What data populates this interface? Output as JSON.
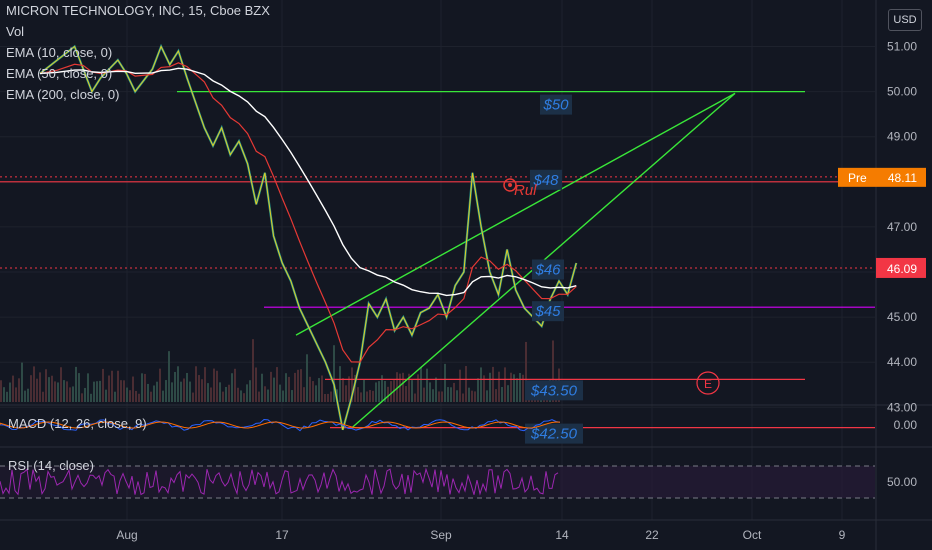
{
  "header": {
    "title": "MICRON TECHNOLOGY, INC, 15, Cboe BZX",
    "currency": "USD"
  },
  "indicators": {
    "vol": "Vol",
    "ema10": "EMA (10, close, 0)",
    "ema50": "EMA (50, close, 0)",
    "ema200": "EMA (200, close, 0)",
    "macd": "MACD (12, 26, close, 9)",
    "rsi": "RSI (14, close)"
  },
  "price_axis": {
    "ticks": [
      "51.00",
      "50.00",
      "49.00",
      "48.00",
      "47.00",
      "46.00",
      "45.00",
      "44.00",
      "43.00"
    ],
    "macd_tick": "0.00",
    "rsi_tick": "50.00",
    "pre_label": "Pre",
    "pre_value": "48.11",
    "last_value": "46.09"
  },
  "time_axis": {
    "labels": [
      "Aug",
      "17",
      "Sep",
      "14",
      "22",
      "Oct",
      "9"
    ]
  },
  "annotations": {
    "level_50": "$50",
    "level_48": "$48",
    "level_46": "$46",
    "level_45": "$45",
    "level_4350": "$43.50",
    "level_4250": "$42.50",
    "note": "Rul",
    "earnings": "E"
  },
  "colors": {
    "background": "#131722",
    "grid": "#1e222d",
    "ema10": "#f7d117",
    "ema50": "#e53935",
    "ema200": "#ffffff",
    "trend": "#39e639",
    "support": "#f23645",
    "magenta": "#d500f9",
    "label_text": "#2962ff",
    "pre_tag": "#f57c00",
    "last_tag": "#f23645",
    "rsi": "#9c27b0"
  },
  "chart_data": {
    "type": "line",
    "title": "MICRON TECHNOLOGY, INC, 15, Cboe BZX",
    "xlabel": "",
    "ylabel": "",
    "ylim": [
      42.3,
      51.2
    ],
    "x_labels": [
      "Aug",
      "17",
      "Sep",
      "14",
      "22",
      "Oct",
      "9"
    ],
    "series": [
      {
        "name": "",
        "values": [
          [
            0,
            50.4
          ],
          [
            2,
            50.7
          ],
          [
            4,
            51.0
          ],
          [
            5,
            50.5
          ],
          [
            6,
            50.0
          ],
          [
            7,
            50.3
          ],
          [
            9,
            50.7
          ],
          [
            10,
            50.4
          ],
          [
            11,
            50.0
          ],
          [
            13,
            50.5
          ],
          [
            14,
            51.0
          ],
          [
            15,
            50.6
          ],
          [
            16,
            50.9
          ],
          [
            17,
            50.3
          ],
          [
            19,
            49.2
          ],
          [
            20,
            48.8
          ],
          [
            21,
            49.2
          ],
          [
            22,
            48.6
          ],
          [
            23,
            48.9
          ],
          [
            24,
            48.4
          ],
          [
            25,
            47.5
          ],
          [
            26,
            48.2
          ],
          [
            27,
            46.8
          ],
          [
            28,
            46.2
          ],
          [
            29,
            45.8
          ],
          [
            30,
            45.2
          ],
          [
            31,
            44.8
          ],
          [
            32,
            44.4
          ],
          [
            33,
            44.0
          ],
          [
            34,
            43.5
          ],
          [
            35,
            42.5
          ],
          [
            36,
            43.2
          ],
          [
            37,
            44.0
          ],
          [
            38,
            45.3
          ],
          [
            39,
            45.0
          ],
          [
            40,
            45.4
          ],
          [
            41,
            44.7
          ],
          [
            42,
            45.0
          ],
          [
            43,
            44.6
          ],
          [
            44,
            45.1
          ],
          [
            45,
            45.2
          ],
          [
            46,
            45.5
          ],
          [
            47,
            45.0
          ],
          [
            48,
            45.7
          ],
          [
            49,
            46.0
          ],
          [
            50,
            48.2
          ],
          [
            51,
            47.0
          ],
          [
            52,
            46.0
          ],
          [
            53,
            45.5
          ],
          [
            54,
            46.5
          ],
          [
            55,
            45.6
          ],
          [
            56,
            45.2
          ],
          [
            57,
            45.0
          ],
          [
            58,
            44.8
          ],
          [
            59,
            45.4
          ],
          [
            60,
            45.8
          ],
          [
            61,
            45.5
          ],
          [
            62,
            46.2
          ]
        ]
      }
    ]
  }
}
